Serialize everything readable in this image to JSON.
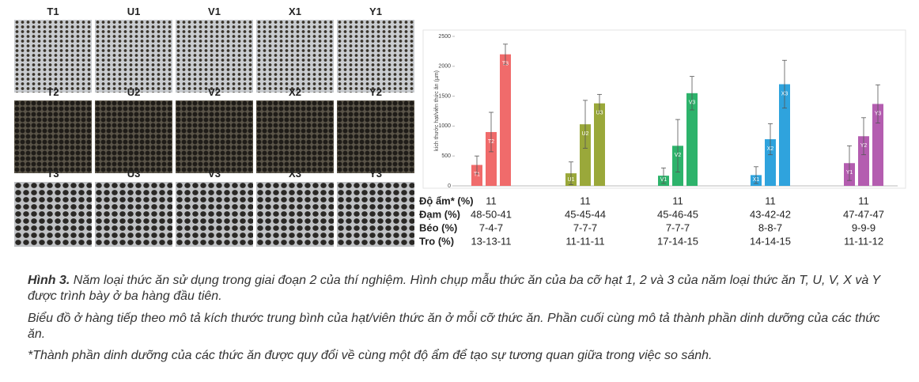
{
  "photos": {
    "labels": [
      [
        "T1",
        "U1",
        "V1",
        "X1",
        "Y1"
      ],
      [
        "T2",
        "U2",
        "V2",
        "X2",
        "Y2"
      ],
      [
        "T3",
        "U3",
        "V3",
        "X3",
        "Y3"
      ]
    ]
  },
  "chart_data": {
    "type": "bar",
    "y_label": "kích thước hạt/viên thức ăn (µm)",
    "ylim": [
      0,
      2500
    ],
    "yticks": [
      0,
      500,
      1000,
      1500,
      2000,
      2500
    ],
    "grid": false,
    "groups": [
      {
        "color": "#f06b6b",
        "labels": [
          "T1",
          "T2",
          "T3"
        ],
        "values": [
          350,
          900,
          2200
        ],
        "errors": [
          150,
          330,
          170
        ]
      },
      {
        "color": "#9aa83a",
        "labels": [
          "U1",
          "U2",
          "U3"
        ],
        "values": [
          210,
          1030,
          1380
        ],
        "errors": [
          190,
          400,
          150
        ]
      },
      {
        "color": "#2db36b",
        "labels": [
          "V1",
          "V2",
          "V3"
        ],
        "values": [
          170,
          670,
          1550
        ],
        "errors": [
          130,
          440,
          280
        ]
      },
      {
        "color": "#2fa3dd",
        "labels": [
          "X1",
          "X2",
          "X3"
        ],
        "values": [
          180,
          780,
          1700
        ],
        "errors": [
          140,
          260,
          400
        ]
      },
      {
        "color": "#b45db0",
        "labels": [
          "Y1",
          "Y2",
          "Y3"
        ],
        "values": [
          380,
          830,
          1370
        ],
        "errors": [
          290,
          310,
          320
        ]
      }
    ]
  },
  "nutrition": {
    "rows": [
      {
        "label": "Độ ẩm* (%)",
        "values": [
          "11",
          "11",
          "11",
          "11",
          "11"
        ]
      },
      {
        "label": "Đạm (%)",
        "values": [
          "48-50-41",
          "45-45-44",
          "45-46-45",
          "43-42-42",
          "47-47-47"
        ]
      },
      {
        "label": "Béo (%)",
        "values": [
          "7-4-7",
          "7-7-7",
          "7-7-7",
          "8-8-7",
          "9-9-9"
        ]
      },
      {
        "label": "Tro (%)",
        "values": [
          "13-13-11",
          "11-11-11",
          "17-14-15",
          "14-14-15",
          "11-11-12"
        ]
      }
    ]
  },
  "caption": {
    "lead": "Hình 3.",
    "p1": "Năm loại thức ăn sử dụng trong giai đoạn 2 của thí nghiệm. Hình chụp mẫu thức ăn của ba cỡ hạt 1, 2 và 3 của năm loại thức ăn T, U, V, X và Y được trình bày ở ba hàng đầu tiên.",
    "p2": "Biểu đồ ở hàng tiếp theo mô tả kích thước trung bình của hạt/viên thức ăn ở mỗi cỡ thức ăn. Phần cuối cùng mô tả thành phần dinh dưỡng của các thức ăn.",
    "p3": "*Thành phần dinh dưỡng của các thức ăn được quy đổi về cùng một độ ẩm để tạo sự tương quan giữa trong việc so sánh."
  }
}
